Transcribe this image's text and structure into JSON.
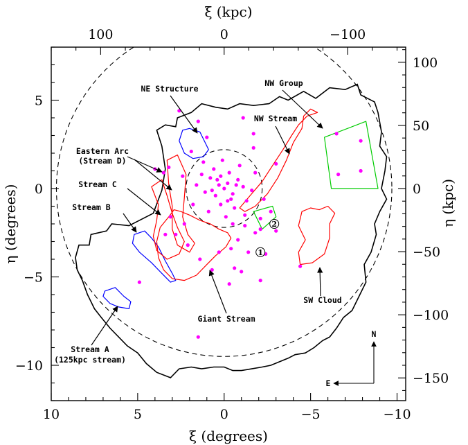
{
  "chart_data": {
    "type": "scatter",
    "axes": {
      "bottom": {
        "label": "ξ (degrees)",
        "range": [
          10,
          -10.5
        ],
        "ticks": [
          10,
          5,
          0,
          -5,
          -10
        ],
        "tick_labels": [
          "10",
          "5",
          "0",
          "−5",
          "−10"
        ]
      },
      "left": {
        "label": "η (degrees)",
        "range": [
          -12,
          8
        ],
        "ticks": [
          5,
          0,
          -5,
          -10
        ],
        "tick_labels": [
          "5",
          "0",
          "−5",
          "−10"
        ]
      },
      "top": {
        "label": "ξ (kpc)",
        "ticks": [
          100,
          0,
          -100
        ],
        "tick_labels": [
          "100",
          "0",
          "−100"
        ]
      },
      "right": {
        "label": "η (kpc)",
        "ticks": [
          100,
          50,
          0,
          -50,
          -100,
          -150
        ],
        "tick_labels": [
          "100",
          "50",
          "0",
          "−50",
          "−100",
          "−150"
        ]
      }
    },
    "compass": {
      "north": "N",
      "east": "E"
    },
    "regions": [
      {
        "id": "ne_structure",
        "label": "NE Structure",
        "color": "#0000ff",
        "shape": [
          [
            2.0,
            3.4
          ],
          [
            1.4,
            3.2
          ],
          [
            0.9,
            2.2
          ],
          [
            1.2,
            1.8
          ],
          [
            1.8,
            1.7
          ],
          [
            2.3,
            2.0
          ],
          [
            2.6,
            2.7
          ],
          [
            2.4,
            3.3
          ]
        ]
      },
      {
        "id": "stream_b",
        "label": "Stream B",
        "color": "#0000ff",
        "shape": [
          [
            5.2,
            -2.6
          ],
          [
            4.6,
            -2.4
          ],
          [
            4.2,
            -2.8
          ],
          [
            3.8,
            -3.3
          ],
          [
            3.4,
            -4.1
          ],
          [
            3.0,
            -4.8
          ],
          [
            2.8,
            -5.2
          ],
          [
            3.1,
            -5.3
          ],
          [
            3.6,
            -4.8
          ],
          [
            4.2,
            -4.2
          ],
          [
            4.9,
            -3.6
          ],
          [
            5.3,
            -3.1
          ]
        ]
      },
      {
        "id": "stream_a",
        "label": "Stream A\n(125kpc stream)",
        "color": "#0000ff",
        "shape": [
          [
            6.9,
            -5.8
          ],
          [
            6.3,
            -5.6
          ],
          [
            5.8,
            -6.1
          ],
          [
            5.4,
            -6.4
          ],
          [
            5.5,
            -6.8
          ],
          [
            6.1,
            -6.7
          ],
          [
            6.6,
            -6.5
          ],
          [
            7.0,
            -6.1
          ]
        ]
      },
      {
        "id": "giant_stream",
        "label": "Giant Stream",
        "color": "#ff0000",
        "shape": [
          [
            3.2,
            -1.6
          ],
          [
            2.9,
            -1.2
          ],
          [
            2.5,
            -1.3
          ],
          [
            2.0,
            -1.5
          ],
          [
            1.4,
            -1.8
          ],
          [
            0.8,
            -2.0
          ],
          [
            0.3,
            -2.3
          ],
          [
            -0.2,
            -2.5
          ],
          [
            -0.4,
            -2.8
          ],
          [
            -0.1,
            -3.3
          ],
          [
            0.5,
            -3.8
          ],
          [
            1.0,
            -4.3
          ],
          [
            1.6,
            -4.9
          ],
          [
            2.3,
            -5.2
          ],
          [
            3.0,
            -5.1
          ],
          [
            3.5,
            -4.6
          ],
          [
            3.8,
            -3.9
          ],
          [
            3.9,
            -3.0
          ],
          [
            3.7,
            -2.2
          ]
        ]
      },
      {
        "id": "stream_c",
        "label": "Stream C",
        "color": "#ff0000",
        "shape": [
          [
            4.2,
            0.1
          ],
          [
            3.8,
            -0.9
          ],
          [
            3.9,
            -1.8
          ],
          [
            4.1,
            -2.7
          ],
          [
            3.9,
            -3.5
          ],
          [
            3.3,
            -4.0
          ],
          [
            2.6,
            -3.7
          ],
          [
            2.3,
            -3.0
          ],
          [
            2.7,
            -2.2
          ],
          [
            3.0,
            -1.4
          ],
          [
            3.3,
            -0.4
          ],
          [
            3.6,
            0.5
          ]
        ]
      },
      {
        "id": "eastern_arc",
        "label": "Eastern Arc\n(Stream D)",
        "color": "#ff0000",
        "shape": [
          [
            3.3,
            1.6
          ],
          [
            2.7,
            1.9
          ],
          [
            2.2,
            0.8
          ],
          [
            2.3,
            -0.5
          ],
          [
            2.4,
            -1.6
          ],
          [
            2.1,
            -2.6
          ],
          [
            1.7,
            -3.1
          ],
          [
            2.0,
            -3.6
          ],
          [
            2.7,
            -3.2
          ],
          [
            3.0,
            -2.3
          ],
          [
            3.0,
            -1.0
          ],
          [
            3.2,
            0.2
          ]
        ]
      },
      {
        "id": "nw_stream",
        "label": "NW Stream",
        "color": "#ff0000",
        "shape": [
          [
            -5.4,
            4.3
          ],
          [
            -5.0,
            4.5
          ],
          [
            -4.6,
            4.1
          ],
          [
            -4.5,
            3.4
          ],
          [
            -4.0,
            2.6
          ],
          [
            -3.6,
            1.6
          ],
          [
            -3.1,
            0.6
          ],
          [
            -2.5,
            -0.3
          ],
          [
            -1.8,
            -1.0
          ],
          [
            -1.2,
            -1.3
          ],
          [
            -0.9,
            -1.1
          ],
          [
            -1.5,
            -0.4
          ],
          [
            -2.2,
            0.4
          ],
          [
            -2.8,
            1.3
          ],
          [
            -3.4,
            2.2
          ],
          [
            -3.9,
            3.0
          ],
          [
            -4.3,
            3.6
          ],
          [
            -4.8,
            4.1
          ]
        ]
      },
      {
        "id": "sw_cloud",
        "label": "SW Cloud",
        "color": "#ff0000",
        "shape": [
          [
            -5.0,
            -1.1
          ],
          [
            -4.5,
            -1.3
          ],
          [
            -4.3,
            -2.1
          ],
          [
            -4.7,
            -2.9
          ],
          [
            -4.3,
            -3.6
          ],
          [
            -4.4,
            -4.3
          ],
          [
            -5.1,
            -4.2
          ],
          [
            -5.8,
            -3.7
          ],
          [
            -6.1,
            -2.8
          ],
          [
            -6.1,
            -2.0
          ],
          [
            -6.4,
            -1.4
          ],
          [
            -6.0,
            -1.0
          ],
          [
            -5.5,
            -1.2
          ]
        ]
      },
      {
        "id": "nw_group",
        "label": "NW Group",
        "color": "#00cc00",
        "shape": [
          [
            -5.8,
            2.9
          ],
          [
            -8.2,
            3.8
          ],
          [
            -8.9,
            0.0
          ],
          [
            -6.2,
            0.0
          ]
        ]
      },
      {
        "id": "field_2",
        "label": "②",
        "color": "#00cc00",
        "shape": [
          [
            -1.7,
            -1.3
          ],
          [
            -2.8,
            -1.0
          ],
          [
            -3.0,
            -1.6
          ],
          [
            -2.2,
            -2.3
          ]
        ]
      }
    ],
    "outer_ellipse": {
      "center": [
        0,
        0
      ],
      "radius_deg": [
        9.7,
        9.5
      ],
      "style": "dashed"
    },
    "inner_circle": {
      "center": [
        0,
        0
      ],
      "radius_deg": 2.2,
      "style": "dashed"
    },
    "survey_boundary": [
      [
        8.6,
        -3.9
      ],
      [
        8.4,
        -3.2
      ],
      [
        7.8,
        -3.2
      ],
      [
        7.7,
        -2.6
      ],
      [
        6.8,
        -2.4
      ],
      [
        6.5,
        -2.0
      ],
      [
        5.5,
        -2.1
      ],
      [
        4.1,
        -1.4
      ],
      [
        3.6,
        -0.1
      ],
      [
        3.4,
        1.1
      ],
      [
        3.6,
        2.4
      ],
      [
        3.9,
        3.3
      ],
      [
        3.4,
        3.6
      ],
      [
        2.8,
        3.5
      ],
      [
        2.7,
        4.0
      ],
      [
        1.9,
        4.3
      ],
      [
        1.3,
        4.8
      ],
      [
        0.5,
        4.6
      ],
      [
        -0.2,
        4.5
      ],
      [
        -0.9,
        4.8
      ],
      [
        -1.7,
        4.7
      ],
      [
        -2.6,
        4.8
      ],
      [
        -3.2,
        5.2
      ],
      [
        -3.7,
        5.0
      ],
      [
        -4.6,
        5.5
      ],
      [
        -5.3,
        5.1
      ],
      [
        -6.1,
        5.7
      ],
      [
        -7.0,
        5.6
      ],
      [
        -7.7,
        5.9
      ],
      [
        -7.9,
        5.3
      ],
      [
        -8.7,
        4.9
      ],
      [
        -8.9,
        4.3
      ],
      [
        -9.1,
        3.2
      ],
      [
        -9.0,
        2.4
      ],
      [
        -9.4,
        1.8
      ],
      [
        -9.3,
        1.0
      ],
      [
        -9.1,
        0.0
      ],
      [
        -9.4,
        -0.6
      ],
      [
        -9.0,
        -1.3
      ],
      [
        -8.7,
        -2.0
      ],
      [
        -8.8,
        -2.6
      ],
      [
        -8.5,
        -3.6
      ],
      [
        -8.1,
        -4.3
      ],
      [
        -8.2,
        -5.3
      ],
      [
        -7.8,
        -6.1
      ],
      [
        -7.4,
        -6.9
      ],
      [
        -6.9,
        -7.3
      ],
      [
        -6.5,
        -7.9
      ],
      [
        -6.1,
        -8.4
      ],
      [
        -5.7,
        -8.6
      ],
      [
        -5.2,
        -9.0
      ],
      [
        -4.7,
        -9.3
      ],
      [
        -4.1,
        -9.4
      ],
      [
        -3.7,
        -9.6
      ],
      [
        -3.2,
        -9.8
      ],
      [
        -2.7,
        -10.0
      ],
      [
        -2.2,
        -10.1
      ],
      [
        -1.6,
        -10.2
      ],
      [
        -1.0,
        -10.3
      ],
      [
        -0.5,
        -10.3
      ],
      [
        0.0,
        -10.1
      ],
      [
        0.6,
        -10.1
      ],
      [
        1.3,
        -10.2
      ],
      [
        1.9,
        -10.1
      ],
      [
        2.6,
        -10.2
      ],
      [
        3.1,
        -10.7
      ],
      [
        3.9,
        -10.4
      ],
      [
        4.5,
        -9.9
      ],
      [
        5.0,
        -9.3
      ],
      [
        5.6,
        -8.9
      ],
      [
        6.1,
        -8.4
      ],
      [
        6.6,
        -7.9
      ],
      [
        7.1,
        -7.3
      ],
      [
        7.5,
        -6.8
      ],
      [
        7.9,
        -6.0
      ],
      [
        8.2,
        -5.2
      ],
      [
        8.5,
        -4.6
      ]
    ],
    "stars": [
      [
        0.0,
        0.0
      ],
      [
        0.3,
        0.2
      ],
      [
        -0.2,
        0.3
      ],
      [
        0.5,
        -0.4
      ],
      [
        -0.5,
        -0.3
      ],
      [
        0.8,
        0.6
      ],
      [
        -0.8,
        0.5
      ],
      [
        0.2,
        -0.9
      ],
      [
        -0.3,
        0.9
      ],
      [
        1.1,
        -0.2
      ],
      [
        -1.1,
        0.1
      ],
      [
        0.6,
        1.1
      ],
      [
        -0.6,
        -1.1
      ],
      [
        1.3,
        0.8
      ],
      [
        -1.3,
        -0.7
      ],
      [
        0.9,
        -1.3
      ],
      [
        -0.9,
        1.3
      ],
      [
        1.6,
        0.2
      ],
      [
        -1.6,
        -0.1
      ],
      [
        0.1,
        1.6
      ],
      [
        -0.1,
        -1.6
      ],
      [
        1.8,
        -0.9
      ],
      [
        -1.8,
        0.9
      ],
      [
        1.2,
        1.5
      ],
      [
        -1.2,
        -1.5
      ],
      [
        0.4,
        0.5
      ],
      [
        -0.4,
        -0.6
      ],
      [
        0.7,
        -0.1
      ],
      [
        -0.7,
        0.2
      ],
      [
        0.2,
        0.7
      ],
      [
        -0.2,
        -0.7
      ],
      [
        2.4,
        0.7
      ],
      [
        -2.3,
        -0.6
      ],
      [
        1.9,
        2.1
      ],
      [
        -1.7,
        2.3
      ],
      [
        2.3,
        -2.0
      ],
      [
        -2.1,
        -2.3
      ],
      [
        3.2,
        1.2
      ],
      [
        -3.0,
        1.4
      ],
      [
        1.0,
        2.9
      ],
      [
        -0.8,
        -2.9
      ],
      [
        1.5,
        3.8
      ],
      [
        -1.1,
        4.0
      ],
      [
        2.6,
        4.4
      ],
      [
        -1.7,
        3.1
      ],
      [
        3.5,
        0.9
      ],
      [
        3.1,
        -1.6
      ],
      [
        2.8,
        -2.6
      ],
      [
        2.1,
        -3.2
      ],
      [
        1.4,
        -4.0
      ],
      [
        0.7,
        -4.6
      ],
      [
        0.3,
        -3.6
      ],
      [
        -0.4,
        -3.4
      ],
      [
        -0.6,
        -4.5
      ],
      [
        -1.4,
        -3.6
      ],
      [
        -1.8,
        -2.5
      ],
      [
        -2.1,
        -1.7
      ],
      [
        -2.7,
        -1.3
      ],
      [
        -3.0,
        -2.4
      ],
      [
        -2.4,
        -3.7
      ],
      [
        -1.2,
        -2.1
      ],
      [
        -0.5,
        -2.0
      ],
      [
        -1.0,
        -4.7
      ],
      [
        -2.1,
        -5.2
      ],
      [
        -0.3,
        -5.4
      ],
      [
        4.9,
        -5.3
      ],
      [
        1.5,
        -8.4
      ],
      [
        -6.5,
        3.1
      ],
      [
        -7.9,
        2.7
      ],
      [
        -6.6,
        0.8
      ],
      [
        -7.9,
        1.0
      ],
      [
        -4.4,
        -4.4
      ],
      [
        3.4,
        -2.6
      ],
      [
        4.0,
        1.1
      ]
    ],
    "annotations": [
      {
        "label": "NE Structure"
      },
      {
        "label": "NW Group"
      },
      {
        "label": "NW Stream"
      },
      {
        "label": "Eastern Arc"
      },
      {
        "label": "(Stream D)"
      },
      {
        "label": "Stream C"
      },
      {
        "label": "Stream B"
      },
      {
        "label": "Stream A"
      },
      {
        "label": "(125kpc stream)"
      },
      {
        "label": "Giant Stream"
      },
      {
        "label": "SW Cloud"
      }
    ],
    "field_markers": [
      {
        "label": "①",
        "at": [
          -2.1,
          -3.6
        ]
      },
      {
        "label": "②",
        "at": [
          -2.9,
          -2.0
        ]
      }
    ]
  }
}
